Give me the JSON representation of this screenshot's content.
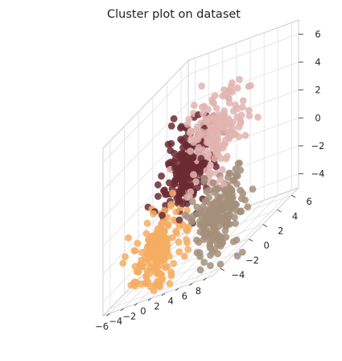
{
  "chart_data": {
    "type": "scatter",
    "subtype": "3d",
    "title": "Cluster plot on dataset",
    "xlabel": "",
    "ylabel": "",
    "zlabel": "",
    "xlim": [
      -7,
      9
    ],
    "ylim": [
      -5,
      7
    ],
    "zlim": [
      -5,
      7
    ],
    "x_ticks": [
      "−6",
      "−4",
      "−2",
      "0",
      "2",
      "4",
      "6",
      "8"
    ],
    "y_ticks": [
      "−4",
      "−2",
      "0",
      "2",
      "4",
      "6"
    ],
    "z_ticks": [
      "−4",
      "−2",
      "0",
      "2",
      "4",
      "6"
    ],
    "grid": true,
    "legend": "none",
    "series": [
      {
        "color": "#6b2a33",
        "center": [
          -2,
          2,
          1
        ],
        "spread": 1.3,
        "count": 220
      },
      {
        "color": "#e0b4b0",
        "center": [
          1,
          3,
          2.5
        ],
        "spread": 1.5,
        "count": 200
      },
      {
        "color": "#f4ad62",
        "center": [
          -3,
          -1,
          -3
        ],
        "spread": 1.3,
        "count": 200
      },
      {
        "color": "#a58f7b",
        "center": [
          4,
          0.5,
          -2.5
        ],
        "spread": 1.2,
        "count": 230
      }
    ]
  }
}
